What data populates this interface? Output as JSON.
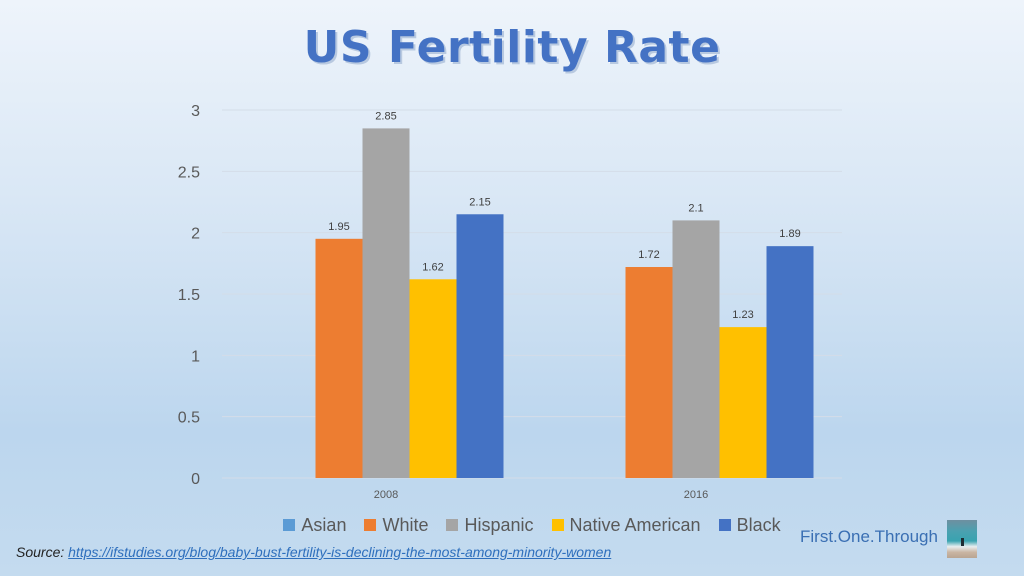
{
  "chart_data": {
    "type": "bar",
    "title": "US Fertility Rate",
    "xlabel": "",
    "ylabel": "",
    "categories": [
      "2008",
      "2016"
    ],
    "series": [
      {
        "name": "Asian",
        "color": "#5b9bd5",
        "values": [
          null,
          null
        ]
      },
      {
        "name": "White",
        "color": "#ed7d31",
        "values": [
          1.95,
          1.72
        ]
      },
      {
        "name": "Hispanic",
        "color": "#a5a5a5",
        "values": [
          2.85,
          2.1
        ]
      },
      {
        "name": "Native American",
        "color": "#ffc000",
        "values": [
          1.62,
          1.23
        ]
      },
      {
        "name": "Black",
        "color": "#4472c4",
        "values": [
          2.15,
          1.89
        ]
      }
    ],
    "data_labels": [
      [
        "",
        "1.95",
        "2.85",
        "1.62",
        "2.15"
      ],
      [
        "",
        "1.72",
        "2.1",
        "1.23",
        "1.89"
      ]
    ],
    "ylim": [
      0,
      3
    ],
    "yticks": [
      0,
      0.5,
      1,
      1.5,
      2,
      2.5,
      3
    ],
    "ytick_labels": [
      "0",
      "0.5",
      "1",
      "1.5",
      "2",
      "2.5",
      "3"
    ],
    "grid": true,
    "legend_position": "bottom"
  },
  "title": "US Fertility Rate",
  "legend": [
    {
      "label": "Asian",
      "color": "#5b9bd5"
    },
    {
      "label": "White",
      "color": "#ed7d31"
    },
    {
      "label": "Hispanic",
      "color": "#a5a5a5"
    },
    {
      "label": "Native American",
      "color": "#ffc000"
    },
    {
      "label": "Black",
      "color": "#4472c4"
    }
  ],
  "source": {
    "prefix": "Source:",
    "link_text": "https://ifstudies.org/blog/baby-bust-fertility-is-declining-the-most-among-minority-women"
  },
  "brand": {
    "name": "First.One.Through",
    "photo_icon": "beach-photo-icon"
  }
}
